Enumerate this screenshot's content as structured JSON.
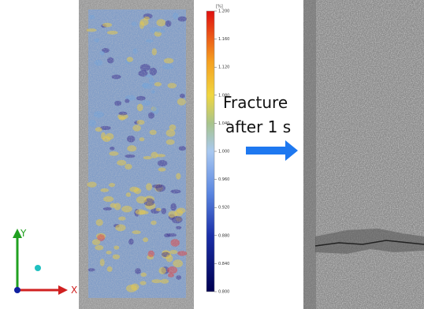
{
  "colorbar": {
    "unit": "[%]",
    "lim": [
      0.8,
      1.2
    ],
    "ticks": [
      {
        "value": 1.2,
        "label": "1.200"
      },
      {
        "value": 1.16,
        "label": "1.160"
      },
      {
        "value": 1.12,
        "label": "1.120"
      },
      {
        "value": 1.08,
        "label": "1.080"
      },
      {
        "value": 1.04,
        "label": "1.040"
      },
      {
        "value": 1.0,
        "label": "1.000"
      },
      {
        "value": 0.96,
        "label": "0.960"
      },
      {
        "value": 0.92,
        "label": "0.920"
      },
      {
        "value": 0.88,
        "label": "0.880"
      },
      {
        "value": 0.84,
        "label": "0.840"
      },
      {
        "value": 0.8,
        "label": "0.800"
      }
    ]
  },
  "annotation": {
    "line1": "Fracture",
    "line2": "after 1 s"
  },
  "axes": {
    "y": "Y",
    "x": "X"
  }
}
